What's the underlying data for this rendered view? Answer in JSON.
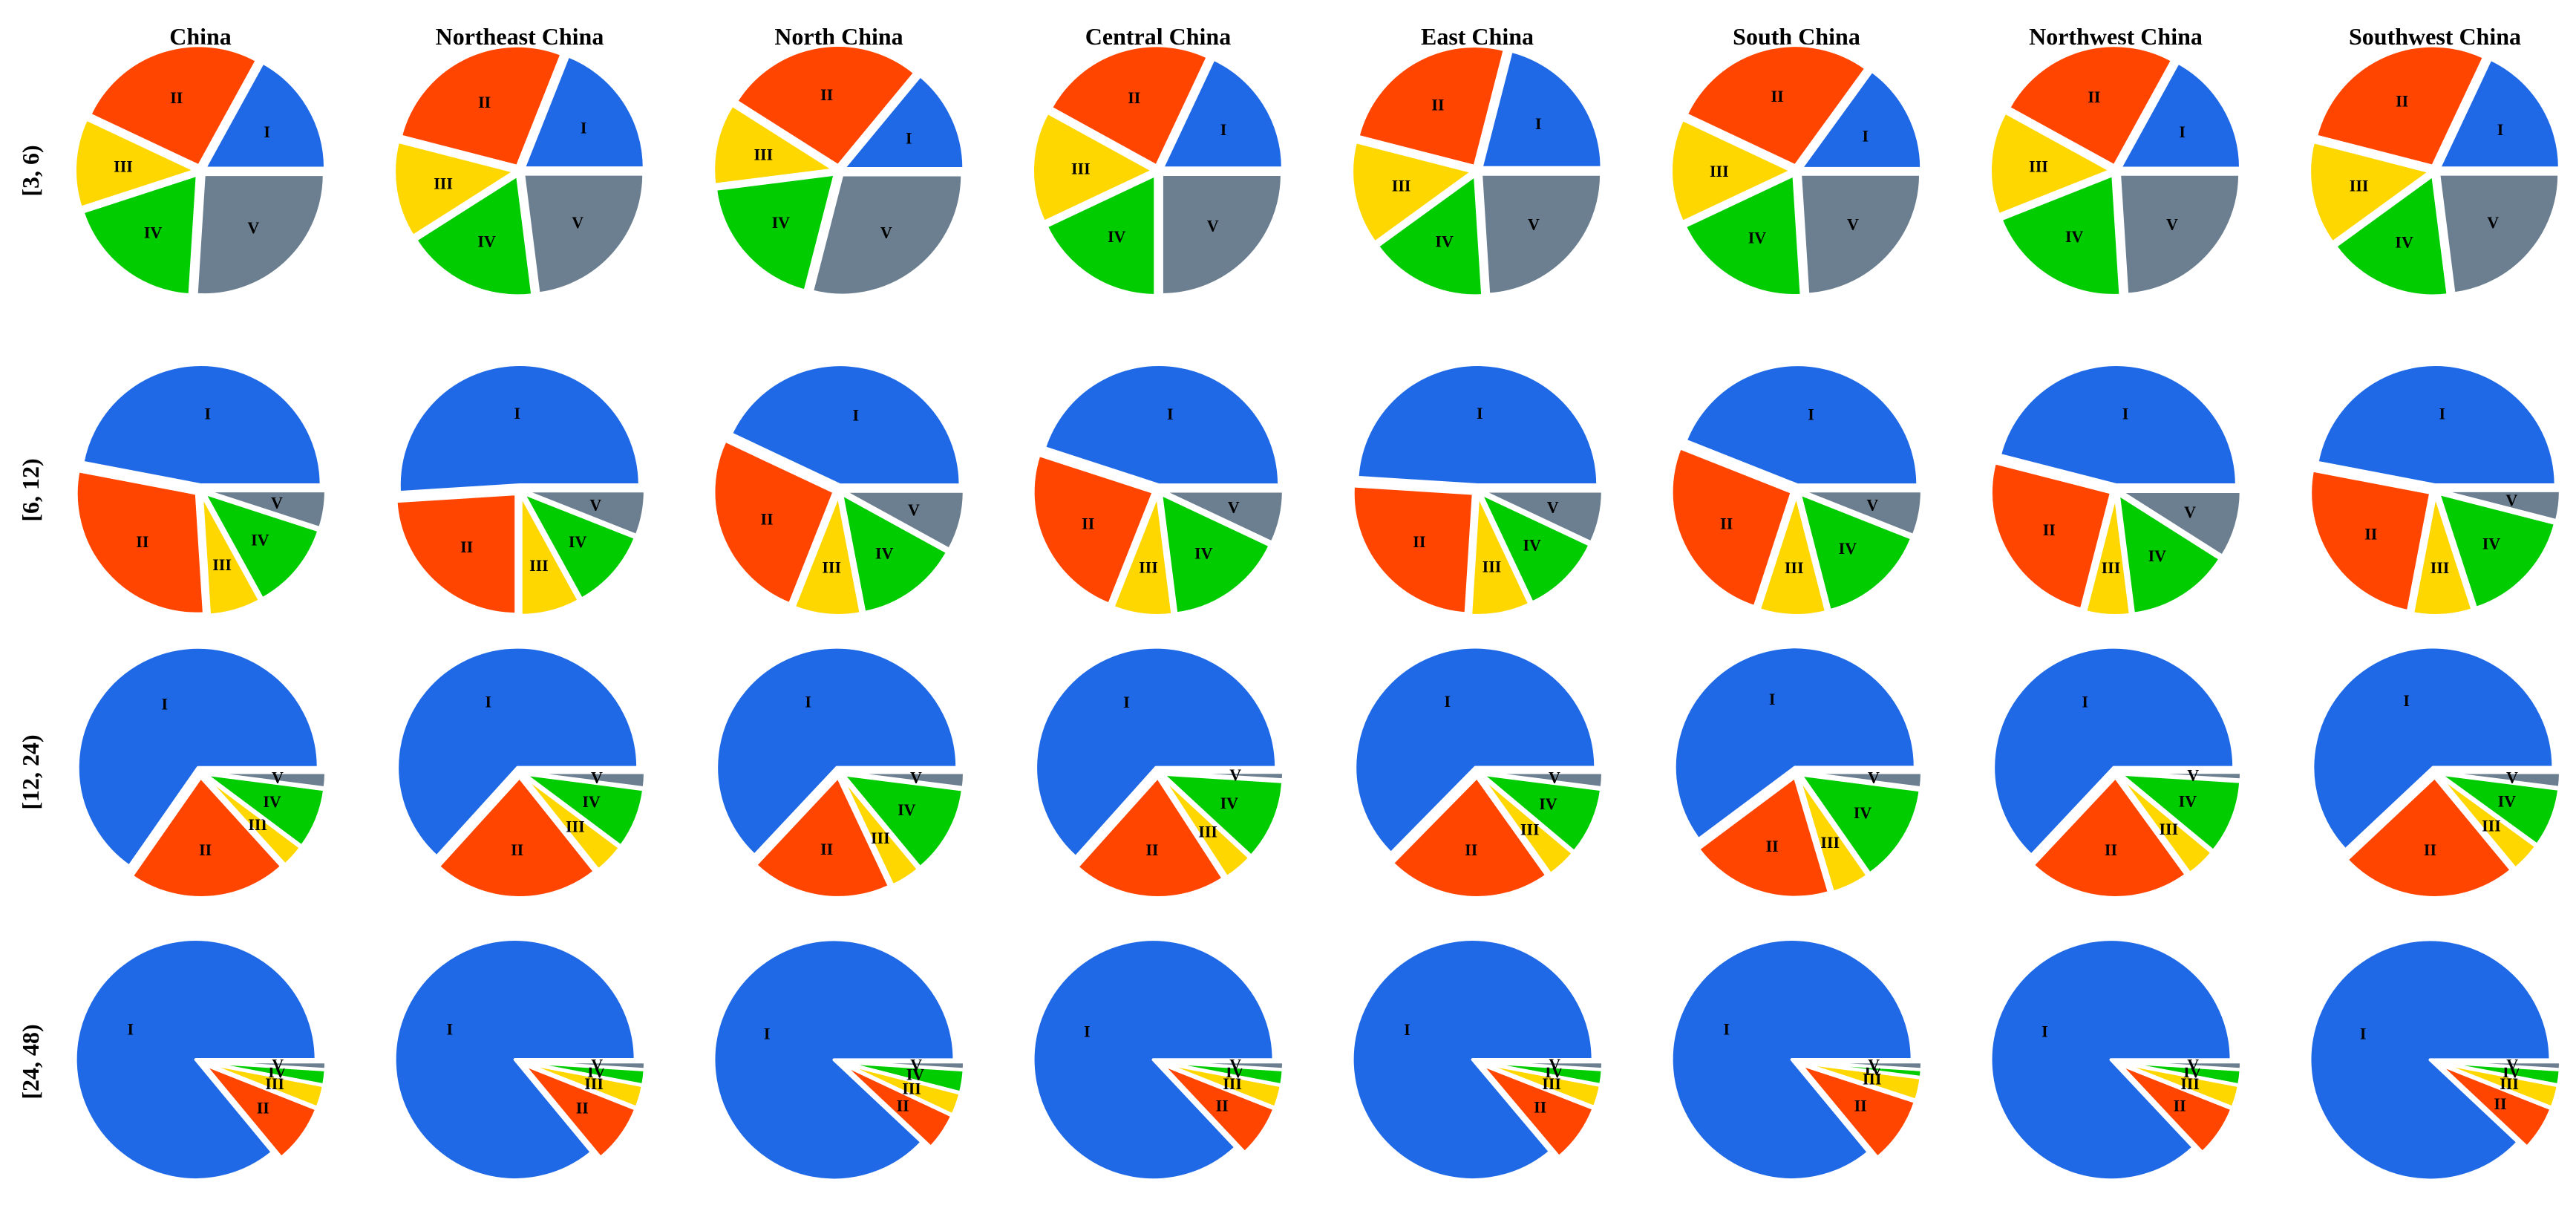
{
  "chart_data": {
    "type": "pie",
    "columns": [
      "China",
      "Northeast China",
      "North China",
      "Central China",
      "East China",
      "South China",
      "Northwest China",
      "Southwest China"
    ],
    "rows": [
      "[3, 6)",
      "[6, 12)",
      "[12, 24)",
      "[24, 48)"
    ],
    "slice_labels": [
      "I",
      "II",
      "III",
      "IV",
      "V"
    ],
    "colors": [
      "#1F69E6",
      "#FF4500",
      "#FFD700",
      "#00CC00",
      "#6B7F90"
    ],
    "values": [
      [
        [
          17,
          26,
          12,
          19,
          26
        ],
        [
          19,
          27,
          13,
          18,
          23
        ],
        [
          14,
          27,
          11,
          19,
          29
        ],
        [
          18,
          24,
          15,
          18,
          25
        ],
        [
          21,
          25,
          14,
          16,
          24
        ],
        [
          15,
          28,
          14,
          19,
          24
        ],
        [
          17,
          25,
          14,
          20,
          24
        ],
        [
          18,
          28,
          14,
          17,
          23
        ]
      ],
      [
        [
          47,
          29,
          7,
          12,
          5
        ],
        [
          51,
          24,
          8,
          11,
          6
        ],
        [
          43,
          26,
          9,
          14,
          8
        ],
        [
          45,
          24,
          8,
          16,
          7
        ],
        [
          49,
          25,
          8,
          11,
          7
        ],
        [
          44,
          26,
          9,
          15,
          6
        ],
        [
          46,
          25,
          6,
          14,
          9
        ],
        [
          47,
          25,
          8,
          16,
          4
        ]
      ],
      [
        [
          64,
          21,
          3,
          8,
          2
        ],
        [
          62,
          22,
          4,
          8,
          2
        ],
        [
          63,
          19,
          4,
          12,
          2
        ],
        [
          64,
          21,
          4,
          11,
          1
        ],
        [
          62,
          22,
          4,
          9,
          2
        ],
        [
          59,
          19,
          5,
          13,
          2
        ],
        [
          63,
          22,
          4,
          10,
          1
        ],
        [
          62,
          24,
          4,
          8,
          2
        ]
      ],
      [
        [
          86,
          8,
          3,
          2,
          1
        ],
        [
          86,
          8,
          3,
          2,
          1
        ],
        [
          88,
          5,
          3,
          3,
          1
        ],
        [
          87,
          7,
          3,
          2,
          1
        ],
        [
          87,
          8,
          3,
          2,
          1
        ],
        [
          86,
          9,
          3,
          1,
          1
        ],
        [
          87,
          7,
          3,
          2,
          1
        ],
        [
          88,
          6,
          3,
          2,
          1
        ]
      ]
    ]
  }
}
